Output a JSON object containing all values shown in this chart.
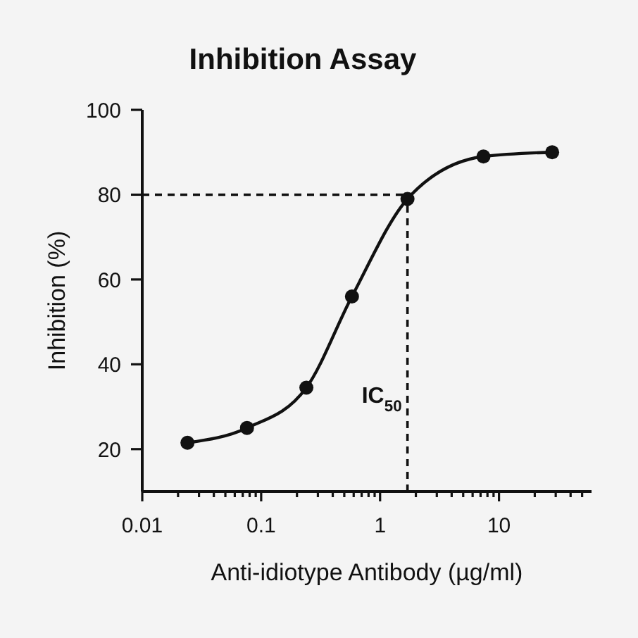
{
  "chart_data": {
    "type": "line",
    "title": "Inhibition Assay",
    "xlabel": "Anti-idiotype Antibody (µg/ml)",
    "ylabel": "Inhibition (%)",
    "x": [
      0.024,
      0.076,
      0.24,
      0.58,
      1.7,
      7.4,
      28
    ],
    "series": [
      {
        "color": "#111111",
        "values": [
          21.5,
          25,
          34.5,
          56,
          79,
          89,
          90
        ]
      }
    ],
    "log": "x",
    "xlim": [
      0.01,
      60
    ],
    "xticks": [
      0.01,
      {
        "value": 0.02,
        "label": null
      },
      {
        "value": 0.03,
        "label": null
      },
      {
        "value": 0.04,
        "label": null
      },
      {
        "value": 0.05,
        "label": null
      },
      {
        "value": 0.06,
        "label": null
      },
      {
        "value": 0.07,
        "label": null
      },
      {
        "value": 0.08,
        "label": null
      },
      {
        "value": 0.09,
        "label": null
      },
      0.1,
      {
        "value": 0.2,
        "label": null
      },
      {
        "value": 0.3,
        "label": null
      },
      {
        "value": 0.4,
        "label": null
      },
      {
        "value": 0.5,
        "label": null
      },
      {
        "value": 0.6,
        "label": null
      },
      {
        "value": 0.7,
        "label": null
      },
      {
        "value": 0.8,
        "label": null
      },
      {
        "value": 0.9,
        "label": null
      },
      1,
      {
        "value": 2,
        "label": null
      },
      {
        "value": 3,
        "label": null
      },
      {
        "value": 4,
        "label": null
      },
      {
        "value": 5,
        "label": null
      },
      {
        "value": 6,
        "label": null
      },
      {
        "value": 7,
        "label": null
      },
      {
        "value": 8,
        "label": null
      },
      {
        "value": 9,
        "label": null
      },
      10,
      {
        "value": 20,
        "label": null
      },
      {
        "value": 30,
        "label": null
      },
      {
        "value": 40,
        "label": null
      },
      {
        "value": 50,
        "label": null
      }
    ],
    "ylim": [
      10,
      100
    ],
    "yticks": [
      20,
      40,
      60,
      80,
      100
    ],
    "marker": "circle",
    "line_style": "solid",
    "ref_lines": [
      {
        "axis": "y",
        "value": 80,
        "color": "#111111",
        "line_style": "dashed"
      },
      {
        "axis": "x",
        "value": 1.7,
        "label": "IC$_{50}$",
        "color": "#111111",
        "line_style": "dashed"
      }
    ]
  }
}
